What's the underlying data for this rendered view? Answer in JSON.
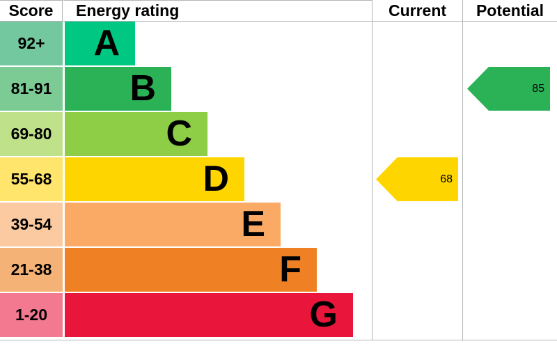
{
  "headers": {
    "score": "Score",
    "energy_rating": "Energy rating",
    "current": "Current",
    "potential": "Potential"
  },
  "colors": {
    "border_line": "#b1b4b6",
    "text": "#000000"
  },
  "chart_data": {
    "type": "bar",
    "title": "Energy rating",
    "legend_position": "none",
    "grid": false,
    "bands": [
      {
        "letter": "A",
        "score": "92+",
        "color": "#00c781",
        "tint": "#73c8a0"
      },
      {
        "letter": "B",
        "score": "81-91",
        "color": "#2bb257",
        "tint": "#7ccb95"
      },
      {
        "letter": "C",
        "score": "69-80",
        "color": "#8dce46",
        "tint": "#bfe189"
      },
      {
        "letter": "D",
        "score": "55-68",
        "color": "#ffd500",
        "tint": "#ffe56b"
      },
      {
        "letter": "E",
        "score": "39-54",
        "color": "#fbaa65",
        "tint": "#fccaa0"
      },
      {
        "letter": "F",
        "score": "21-38",
        "color": "#ef8023",
        "tint": "#f5b277"
      },
      {
        "letter": "G",
        "score": "1-20",
        "color": "#e9153b",
        "tint": "#f2798f"
      }
    ],
    "current": {
      "value": 68,
      "band": "D",
      "color": "#ffd500"
    },
    "potential": {
      "value": 85,
      "band": "B",
      "color": "#2bb257"
    }
  }
}
